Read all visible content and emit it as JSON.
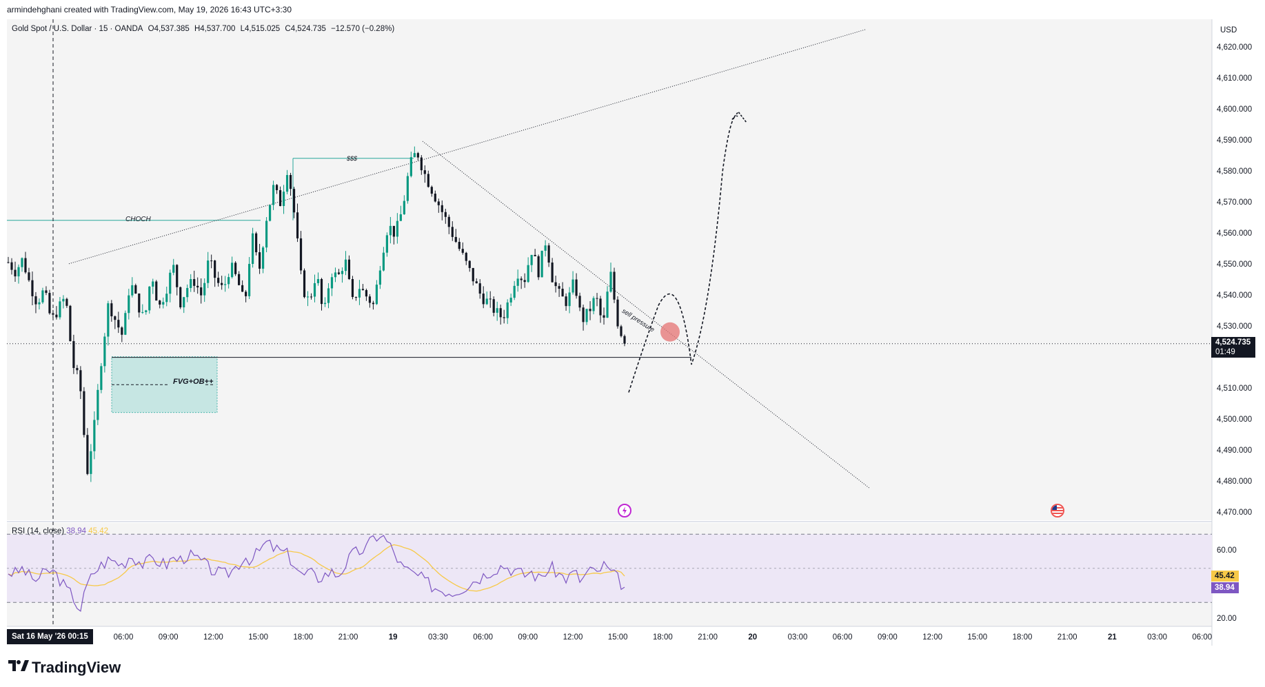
{
  "header": {
    "text": "armindehghani created with TradingView.com, May 19, 2026 16:43 UTC+3:30"
  },
  "symbol": {
    "name": "Gold Spot / U.S. Dollar · 15 · OANDA",
    "open": "O4,537.385",
    "high": "H4,537.700",
    "low": "L4,515.025",
    "close": "C4,524.735",
    "change": "−12.570 (−0.28%)"
  },
  "currency": "USD",
  "price_axis": [
    "4,620.000",
    "4,610.000",
    "4,600.000",
    "4,590.000",
    "4,580.000",
    "4,570.000",
    "4,560.000",
    "4,550.000",
    "4,540.000",
    "4,530.000",
    "4,510.000",
    "4,500.000",
    "4,490.000",
    "4,480.000",
    "4,470.000"
  ],
  "price_tag": {
    "price": "4,524.735",
    "countdown": "01:49"
  },
  "rsi": {
    "legend_name": "RSI (14, close)",
    "value": "38.94",
    "ma_value": "45.42",
    "axis": [
      "60.00",
      "20.00"
    ],
    "tag_rsi": "38.94",
    "tag_ma": "45.42",
    "upper": 70,
    "lower": 30,
    "mid": 50,
    "colors": {
      "rsi": "#7e57c2",
      "ma": "#f7c948",
      "band": "#ede7f6"
    }
  },
  "time_axis": {
    "date_badge": "Sat 16 May '26   00:15",
    "labels": [
      "06:00",
      "09:00",
      "12:00",
      "15:00",
      "18:00",
      "21:00",
      "19",
      "03:30",
      "06:00",
      "09:00",
      "12:00",
      "15:00",
      "18:00",
      "21:00",
      "20",
      "03:00",
      "06:00",
      "09:00",
      "12:00",
      "15:00",
      "18:00",
      "21:00",
      "21",
      "03:00",
      "06:00"
    ],
    "bold": [
      "19",
      "20",
      "21"
    ]
  },
  "annotations": {
    "choch": "CHOCH",
    "dollars": "$$$",
    "fvg": "FVG+OB++",
    "sell_pressure": "sell pressure"
  },
  "logo": "TradingView",
  "colors": {
    "up": "#089981",
    "down": "#131722",
    "zone": "#b2dfdb",
    "level": "#26a69a",
    "circle": "#e57373"
  },
  "chart_data": {
    "type": "candlestick",
    "title": "Gold Spot / U.S. Dollar · 15 · OANDA",
    "ylim": [
      4465,
      4625
    ],
    "last_close": 4524.735,
    "levels": {
      "choch": 4564.5,
      "dollars": 4584.5,
      "support": 4520.3
    },
    "fvg_zone": {
      "top": 4520.5,
      "bottom": 4502.5,
      "mid": 4511.5
    },
    "waypoints": [
      4551,
      4548,
      4552,
      4544,
      4538,
      4542,
      4532,
      4536,
      4540,
      4518,
      4512,
      4483,
      4498,
      4520,
      4538,
      4532,
      4527,
      4545,
      4538,
      4532,
      4548,
      4536,
      4542,
      4550,
      4538,
      4543,
      4545,
      4540,
      4552,
      4545,
      4542,
      4550,
      4545,
      4537,
      4560,
      4548,
      4565,
      4575,
      4570,
      4582,
      4565,
      4543,
      4538,
      4548,
      4533,
      4548,
      4546,
      4552,
      4538,
      4543,
      4540,
      4537,
      4552,
      4563,
      4560,
      4568,
      4582,
      4587,
      4580,
      4575,
      4570,
      4565,
      4560,
      4555,
      4550,
      4545,
      4540,
      4538,
      4535,
      4533,
      4540,
      4548,
      4545,
      4555,
      4548,
      4558,
      4545,
      4540,
      4538,
      4545,
      4532,
      4535,
      4540,
      4530,
      4548,
      4532,
      4524.7
    ],
    "rsi_waypoints": [
      48,
      47,
      50,
      45,
      43,
      47,
      49,
      45,
      38,
      34,
      25,
      40,
      48,
      52,
      55,
      54,
      52,
      58,
      55,
      52,
      56,
      54,
      52,
      56,
      55,
      58,
      56,
      54,
      50,
      48,
      46,
      48,
      52,
      57,
      55,
      60,
      65,
      62,
      60,
      58,
      52,
      45,
      48,
      44,
      46,
      48,
      46,
      52,
      58,
      60,
      62,
      68,
      70,
      65,
      58,
      50,
      48,
      46,
      43,
      40,
      38,
      37,
      36,
      38,
      40,
      43,
      45,
      48,
      50,
      52,
      50,
      48,
      46,
      48,
      44,
      48,
      50,
      46,
      44,
      48,
      42,
      50,
      46,
      52,
      48,
      44,
      38.94
    ]
  }
}
